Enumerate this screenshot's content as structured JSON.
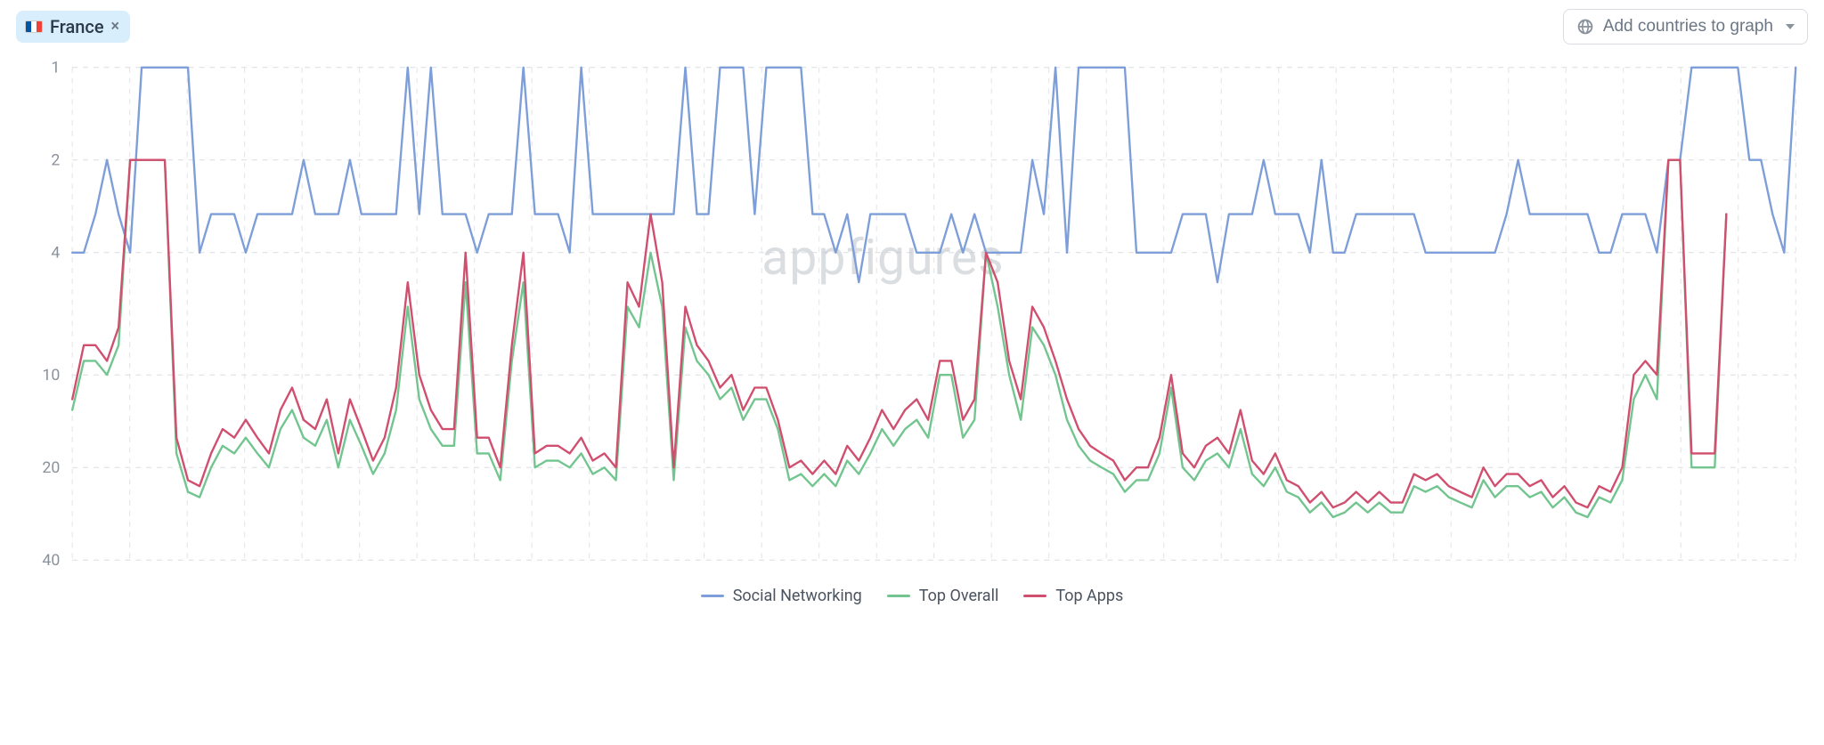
{
  "toolbar": {
    "chip_label": "France",
    "chip_flag_colors": [
      "#0055A4",
      "#ffffff",
      "#EF4135"
    ],
    "add_button_label": "Add countries to graph"
  },
  "watermark": "appfigures",
  "chart": {
    "type": "line",
    "ylabel_side": "left",
    "y_scale": "log",
    "y_ticks": [
      1,
      2,
      4,
      10,
      20,
      40
    ],
    "ylim": [
      40,
      1
    ],
    "grid_color": "#d9dde2",
    "grid_dash": "6 6",
    "background_color": "#ffffff",
    "tick_fontsize": 18,
    "tick_color": "#8a929b",
    "line_width": 2.4,
    "series": [
      {
        "name": "Social Networking",
        "color": "#7d9ed9",
        "values": [
          4,
          4,
          3,
          2,
          3,
          4,
          1,
          1,
          1,
          1,
          1,
          4,
          3,
          3,
          3,
          4,
          3,
          3,
          3,
          3,
          2,
          3,
          3,
          3,
          2,
          3,
          3,
          3,
          3,
          1,
          3,
          1,
          3,
          3,
          3,
          4,
          3,
          3,
          3,
          1,
          3,
          3,
          3,
          4,
          1,
          3,
          3,
          3,
          3,
          3,
          3,
          3,
          3,
          1,
          3,
          3,
          1,
          1,
          1,
          3,
          1,
          1,
          1,
          1,
          3,
          3,
          4,
          3,
          5,
          3,
          3,
          3,
          3,
          4,
          4,
          4,
          3,
          4,
          3,
          4,
          4,
          4,
          4,
          2,
          3,
          1,
          4,
          1,
          1,
          1,
          1,
          1,
          4,
          4,
          4,
          4,
          3,
          3,
          3,
          5,
          3,
          3,
          3,
          2,
          3,
          3,
          3,
          4,
          2,
          4,
          4,
          3,
          3,
          3,
          3,
          3,
          3,
          4,
          4,
          4,
          4,
          4,
          4,
          4,
          3,
          2,
          3,
          3,
          3,
          3,
          3,
          3,
          4,
          4,
          3,
          3,
          3,
          4,
          2,
          2,
          1,
          1,
          1,
          1,
          1,
          2,
          2,
          3,
          4,
          1
        ]
      },
      {
        "name": "Top Overall",
        "color": "#72c58e",
        "values": [
          13,
          9,
          9,
          10,
          8,
          2,
          2,
          2,
          2,
          18,
          24,
          25,
          20,
          17,
          18,
          16,
          18,
          20,
          15,
          13,
          16,
          17,
          14,
          20,
          14,
          17,
          21,
          18,
          13,
          6,
          12,
          15,
          17,
          17,
          5,
          18,
          18,
          22,
          9,
          5,
          20,
          19,
          19,
          20,
          18,
          21,
          20,
          22,
          6,
          7,
          4,
          6,
          22,
          7,
          9,
          10,
          12,
          11,
          14,
          12,
          12,
          15,
          22,
          21,
          23,
          21,
          23,
          19,
          21,
          18,
          15,
          17,
          15,
          14,
          16,
          10,
          10,
          16,
          14,
          4,
          6,
          10,
          14,
          7,
          8,
          10,
          14,
          17,
          19,
          20,
          21,
          24,
          22,
          22,
          18,
          11,
          20,
          22,
          19,
          18,
          20,
          15,
          21,
          23,
          20,
          24,
          25,
          28,
          26,
          29,
          28,
          26,
          28,
          26,
          28,
          28,
          23,
          24,
          23,
          25,
          26,
          27,
          22,
          25,
          23,
          23,
          25,
          24,
          27,
          25,
          28,
          29,
          25,
          26,
          22,
          12,
          10,
          12,
          2,
          2,
          20,
          20,
          20,
          3
        ]
      },
      {
        "name": "Top Apps",
        "color": "#d04e6e",
        "values": [
          12,
          8,
          8,
          9,
          7,
          2,
          2,
          2,
          2,
          16,
          22,
          23,
          18,
          15,
          16,
          14,
          16,
          18,
          13,
          11,
          14,
          15,
          12,
          18,
          12,
          15,
          19,
          16,
          11,
          5,
          10,
          13,
          15,
          15,
          4,
          16,
          16,
          20,
          8,
          4,
          18,
          17,
          17,
          18,
          16,
          19,
          18,
          20,
          5,
          6,
          3,
          5,
          20,
          6,
          8,
          9,
          11,
          10,
          13,
          11,
          11,
          14,
          20,
          19,
          21,
          19,
          21,
          17,
          19,
          16,
          13,
          15,
          13,
          12,
          14,
          9,
          9,
          14,
          12,
          4,
          5,
          9,
          12,
          6,
          7,
          9,
          12,
          15,
          17,
          18,
          19,
          22,
          20,
          20,
          16,
          10,
          18,
          20,
          17,
          16,
          18,
          13,
          19,
          21,
          18,
          22,
          23,
          26,
          24,
          27,
          26,
          24,
          26,
          24,
          26,
          26,
          21,
          22,
          21,
          23,
          24,
          25,
          20,
          23,
          21,
          21,
          23,
          22,
          25,
          23,
          26,
          27,
          23,
          24,
          20,
          10,
          9,
          10,
          2,
          2,
          18,
          18,
          18,
          3
        ]
      }
    ],
    "legend_fontsize": 18,
    "legend_color": "#4a5360"
  }
}
